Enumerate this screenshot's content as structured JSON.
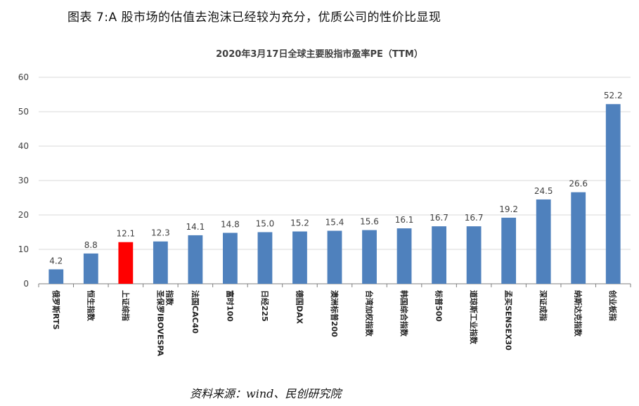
{
  "figure_title": "图表 7:A 股市场的估值去泡沫已经较为充分，优质公司的性价比显现",
  "source_note": "资料来源：wind、民创研究院",
  "colors": {
    "bar": "#4f81bd",
    "highlight": "#ff0000",
    "grid": "#d9d9d9",
    "axis": "#7f7f7f"
  },
  "chart_data": {
    "type": "bar",
    "title": "2020年3月17日全球主要股指市盈率PE（TTM）",
    "xlabel": "",
    "ylabel": "",
    "ylim": [
      0,
      60
    ],
    "yticks": [
      0,
      10,
      20,
      30,
      40,
      50,
      60
    ],
    "grid": true,
    "categories": [
      "俄罗斯RTS",
      "恒生指数",
      "上证综指",
      "圣保罗IBOVESPA指数",
      "法国CAC40",
      "富时100",
      "日经225",
      "德国DAX",
      "澳洲标普200",
      "台湾加权指数",
      "韩国综合指数",
      "标普500",
      "道琼斯工业指数",
      "孟买SENSEX30",
      "深证成指",
      "纳斯达克指数",
      "创业板指"
    ],
    "values": [
      4.2,
      8.8,
      12.1,
      12.3,
      14.1,
      14.8,
      15.0,
      15.2,
      15.4,
      15.6,
      16.1,
      16.7,
      16.7,
      19.2,
      24.5,
      26.6,
      52.2
    ],
    "data_labels": [
      "4.2",
      "8.8",
      "12.1",
      "12.3",
      "14.1",
      "14.8",
      "15.0",
      "15.2",
      "15.4",
      "15.6",
      "16.1",
      "16.7",
      "16.7",
      "19.2",
      "24.5",
      "26.6",
      "52.2"
    ],
    "highlight": "上证综指"
  }
}
